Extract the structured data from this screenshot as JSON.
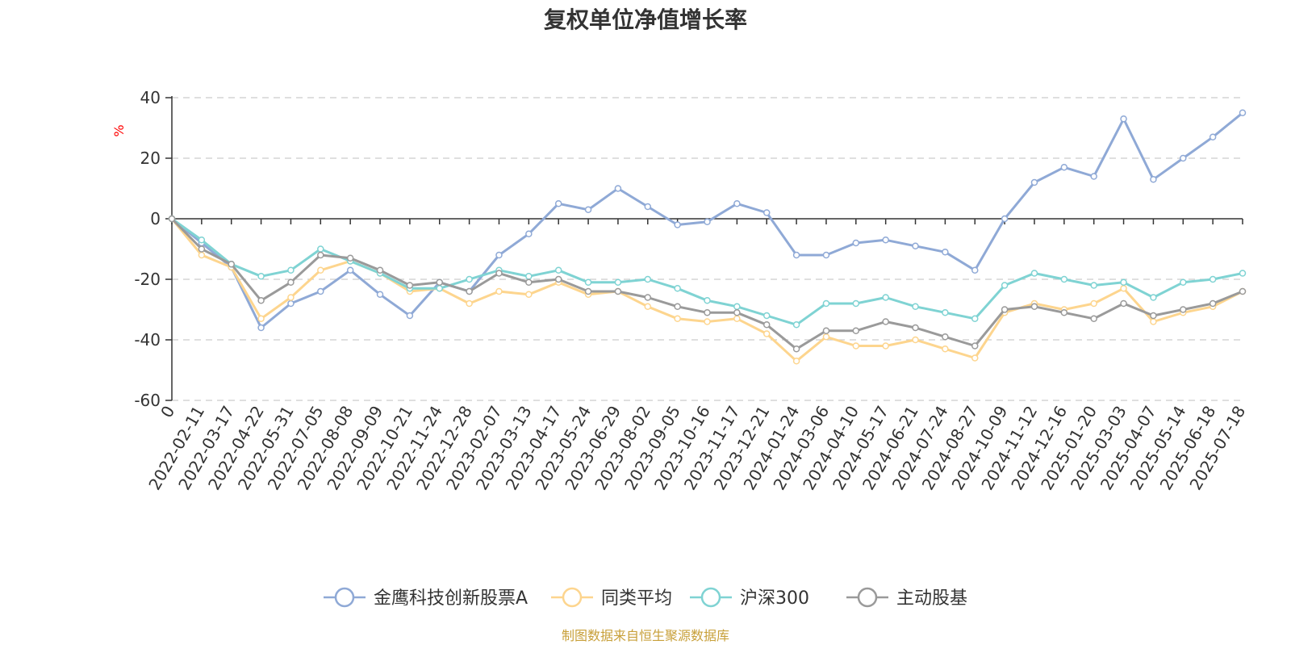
{
  "chart_data": {
    "type": "line",
    "title": "复权单位净值增长率",
    "ylabel": "%",
    "ylim": [
      -60,
      40
    ],
    "yticks": [
      40,
      20,
      0,
      -20,
      -40,
      -60
    ],
    "grid": true,
    "legend_position": "bottom",
    "x": [
      "0",
      "2022-02-11",
      "2022-03-17",
      "2022-04-22",
      "2022-05-31",
      "2022-07-05",
      "2022-08-08",
      "2022-09-09",
      "2022-10-21",
      "2022-11-24",
      "2022-12-28",
      "2023-02-07",
      "2023-03-13",
      "2023-04-17",
      "2023-05-24",
      "2023-06-29",
      "2023-08-02",
      "2023-09-05",
      "2023-10-16",
      "2023-11-17",
      "2023-12-21",
      "2024-01-24",
      "2024-03-06",
      "2024-04-10",
      "2024-05-17",
      "2024-06-21",
      "2024-07-24",
      "2024-08-27",
      "2024-10-09",
      "2024-11-12",
      "2024-12-16",
      "2025-01-20",
      "2025-03-03",
      "2025-04-07",
      "2025-05-14",
      "2025-06-18",
      "2025-07-18"
    ],
    "series": [
      {
        "name": "金鹰科技创新股票A",
        "color": "#8fa9d6",
        "values": [
          0,
          -8,
          -16,
          -36,
          -28,
          -24,
          -17,
          -25,
          -32,
          -21,
          -24,
          -12,
          -5,
          5,
          3,
          10,
          4,
          -2,
          -1,
          5,
          2,
          -12,
          -12,
          -8,
          -7,
          -9,
          -11,
          -17,
          0,
          12,
          17,
          14,
          33,
          13,
          20,
          27,
          35
        ]
      },
      {
        "name": "同类平均",
        "color": "#fdd58e",
        "values": [
          0,
          -12,
          -16,
          -33,
          -26,
          -17,
          -14,
          -18,
          -24,
          -23,
          -28,
          -24,
          -25,
          -21,
          -25,
          -24,
          -29,
          -33,
          -34,
          -33,
          -38,
          -47,
          -39,
          -42,
          -42,
          -40,
          -43,
          -46,
          -31,
          -28,
          -30,
          -28,
          -23,
          -34,
          -31,
          -29,
          -24
        ]
      },
      {
        "name": "沪深300",
        "color": "#7fd3d3",
        "values": [
          0,
          -7,
          -15,
          -19,
          -17,
          -10,
          -14,
          -18,
          -23,
          -23,
          -20,
          -17,
          -19,
          -17,
          -21,
          -21,
          -20,
          -23,
          -27,
          -29,
          -32,
          -35,
          -28,
          -28,
          -26,
          -29,
          -31,
          -33,
          -22,
          -18,
          -20,
          -22,
          -21,
          -26,
          -21,
          -20,
          -18
        ]
      },
      {
        "name": "主动股基",
        "color": "#9a9a9a",
        "values": [
          0,
          -10,
          -15,
          -27,
          -21,
          -12,
          -13,
          -17,
          -22,
          -21,
          -24,
          -18,
          -21,
          -20,
          -24,
          -24,
          -26,
          -29,
          -31,
          -31,
          -35,
          -43,
          -37,
          -37,
          -34,
          -36,
          -39,
          -42,
          -30,
          -29,
          -31,
          -33,
          -28,
          -32,
          -30,
          -28,
          -24
        ]
      }
    ]
  },
  "footer": {
    "source": "制图数据来自恒生聚源数据库"
  }
}
